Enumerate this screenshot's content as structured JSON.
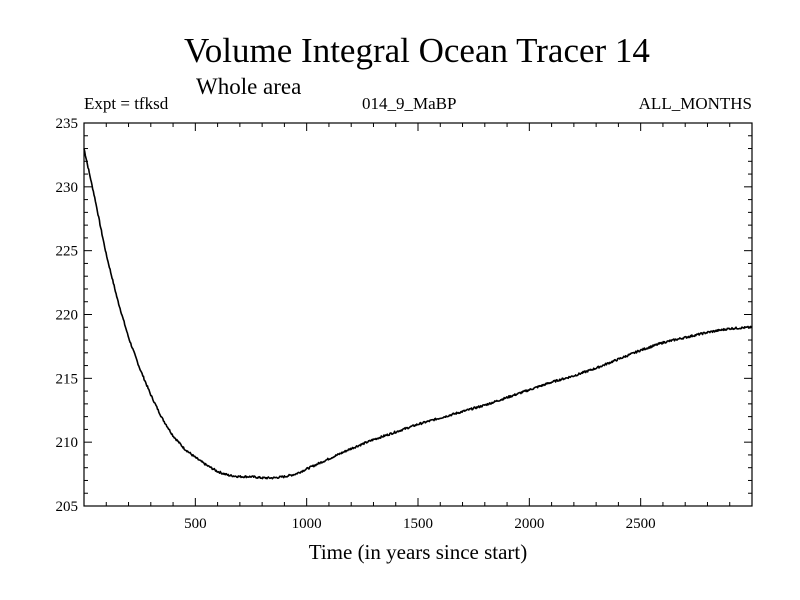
{
  "chart_data": {
    "type": "line",
    "title": "Volume Integral Ocean Tracer 14",
    "subtitle": "Whole area",
    "expt_label": "Expt = tfksd",
    "run_label": "014_9_MaBP",
    "period_label": "ALL_MONTHS",
    "xlabel": "Time (in years since start)",
    "ylabel": "",
    "xlim": [
      0,
      3000
    ],
    "ylim": [
      205,
      235
    ],
    "xticks": [
      500,
      1000,
      1500,
      2000,
      2500
    ],
    "xticklabels": [
      "500",
      "1000",
      "1500",
      "2000",
      "2500"
    ],
    "yticks": [
      205,
      210,
      215,
      220,
      225,
      230,
      235
    ],
    "yticklabels": [
      "205",
      "210",
      "215",
      "220",
      "225",
      "230",
      "235"
    ],
    "grid": false,
    "series": [
      {
        "name": "Volume Integral Ocean Tracer 14",
        "x": [
          0,
          25,
          50,
          75,
          100,
          150,
          200,
          250,
          300,
          350,
          400,
          450,
          500,
          550,
          600,
          650,
          700,
          750,
          800,
          850,
          900,
          950,
          1000,
          1100,
          1200,
          1300,
          1400,
          1500,
          1600,
          1700,
          1800,
          1900,
          2000,
          2100,
          2200,
          2300,
          2400,
          2500,
          2600,
          2700,
          2800,
          2900,
          3000
        ],
        "values": [
          233.0,
          231.0,
          229.0,
          226.8,
          224.7,
          221.2,
          218.2,
          215.8,
          213.7,
          211.9,
          210.5,
          209.5,
          208.8,
          208.2,
          207.7,
          207.4,
          207.3,
          207.3,
          207.2,
          207.2,
          207.3,
          207.5,
          207.9,
          208.7,
          209.5,
          210.2,
          210.8,
          211.4,
          211.9,
          212.4,
          212.9,
          213.5,
          214.1,
          214.7,
          215.2,
          215.8,
          216.5,
          217.2,
          217.8,
          218.2,
          218.6,
          218.9,
          219.0
        ]
      }
    ]
  }
}
